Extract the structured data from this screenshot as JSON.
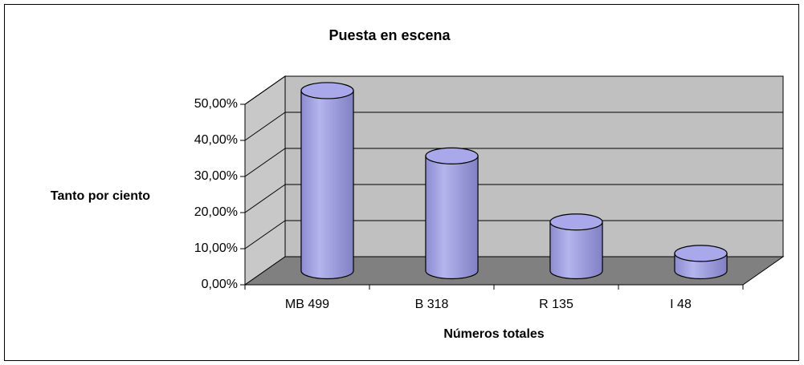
{
  "chart_data": {
    "type": "bar3d",
    "title": "Puesta en escena",
    "x_label": "Números totales",
    "y_label": "Tanto por ciento",
    "categories": [
      "MB 499",
      "B 318",
      "R 135",
      "I 48"
    ],
    "values": [
      49.9,
      31.8,
      13.5,
      4.8
    ],
    "color": "#9999e0",
    "ylim": [
      0,
      50
    ],
    "yticks": [
      {
        "value": 0,
        "label": "0,00%"
      },
      {
        "value": 10,
        "label": "10,00%"
      },
      {
        "value": 20,
        "label": "20,00%"
      },
      {
        "value": 30,
        "label": "30,00%"
      },
      {
        "value": 40,
        "label": "40,00%"
      },
      {
        "value": 50,
        "label": "50,00%"
      }
    ],
    "grid": true
  }
}
